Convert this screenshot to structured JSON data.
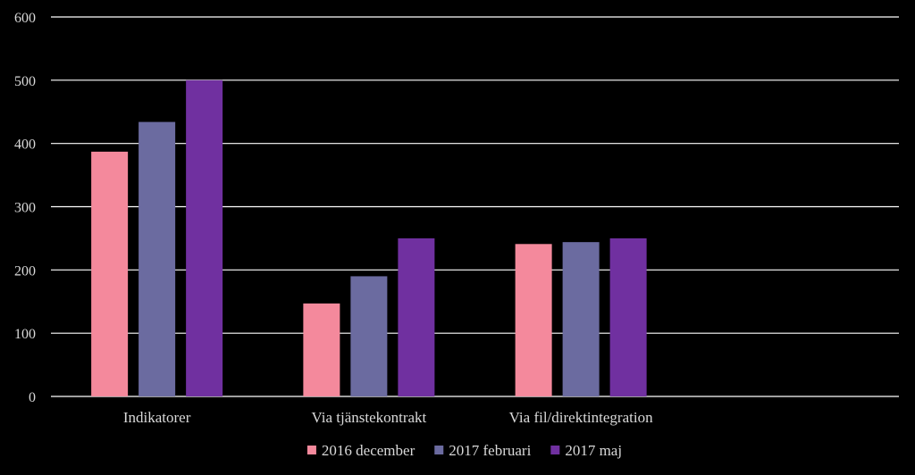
{
  "chart_data": {
    "type": "bar",
    "categories": [
      "Indikatorer",
      "Via tjänstekontrakt",
      "Via fil/direktintegration",
      ""
    ],
    "series": [
      {
        "name": "2016 december",
        "values": [
          387,
          147,
          241,
          null
        ],
        "color": "#f4899c"
      },
      {
        "name": "2017 februari",
        "values": [
          434,
          190,
          244,
          null
        ],
        "color": "#6b6ba0"
      },
      {
        "name": "2017 maj",
        "values": [
          500,
          250,
          250,
          null
        ],
        "color": "#7030a0"
      }
    ],
    "ylim": [
      0,
      600
    ],
    "yticks": [
      "0",
      "100",
      "200",
      "300",
      "400",
      "500",
      "600"
    ],
    "grid": true,
    "legend": "bottom",
    "colors": {
      "background": "#000000",
      "grid": "#ffffff",
      "text": "#d9d9d9"
    }
  }
}
